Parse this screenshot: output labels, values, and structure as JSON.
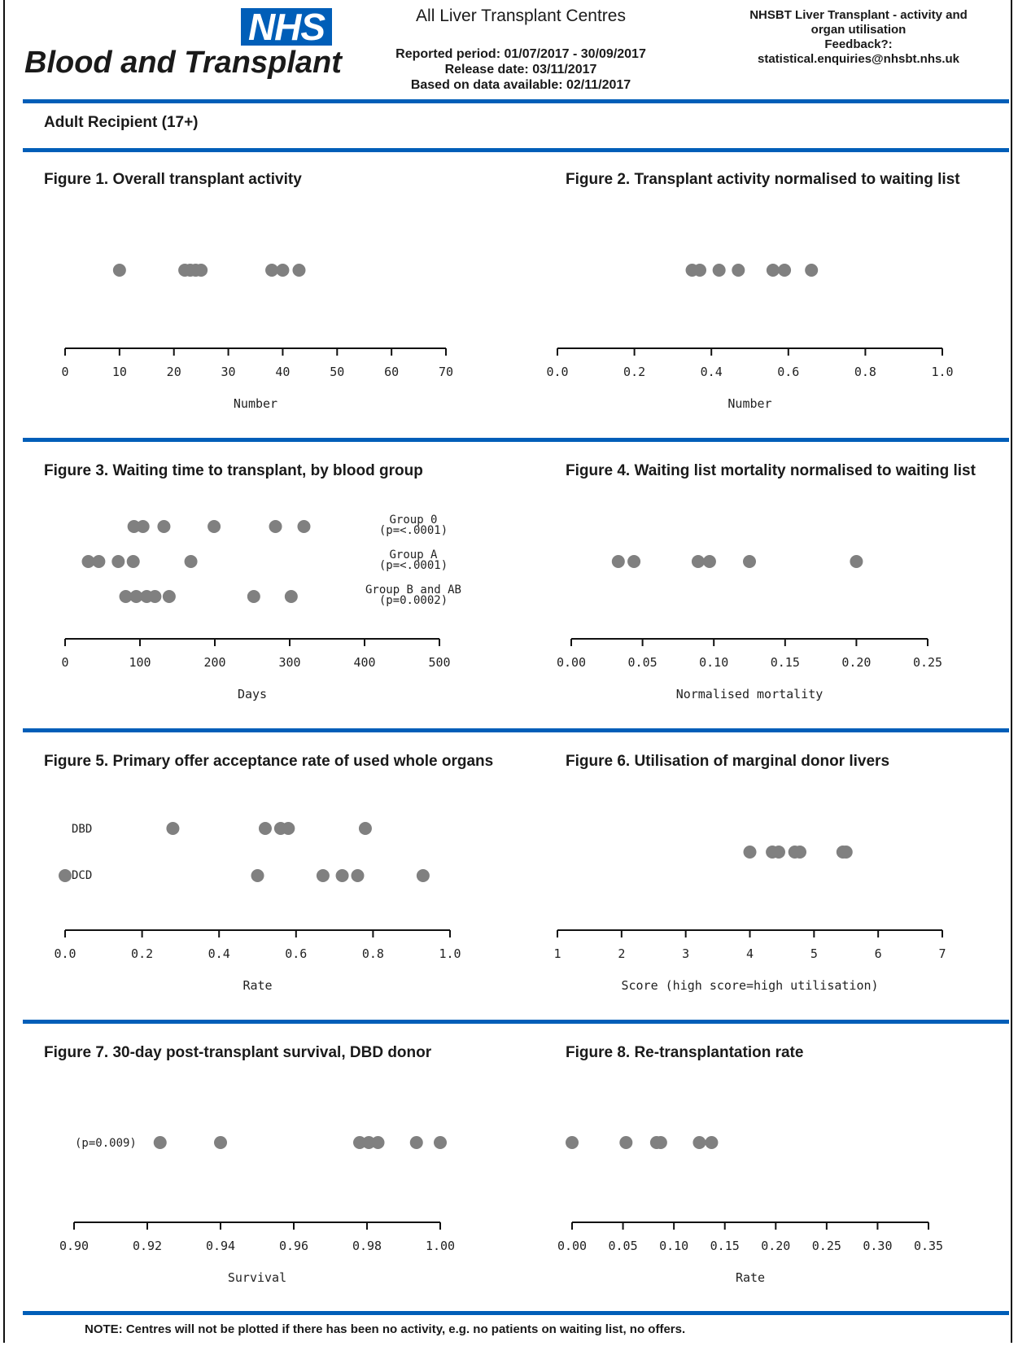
{
  "header": {
    "logo_text": "NHS",
    "org_name": "Blood and Transplant",
    "report_title": "All Liver Transplant Centres",
    "period_line": "Reported period: 01/07/2017  - 30/09/2017",
    "release_line": "Release date: 03/11/2017",
    "data_line": "Based on data available: 02/11/2017",
    "right_line1": "NHSBT Liver Transplant - activity and",
    "right_line2": "organ utilisation",
    "right_line3": "Feedback?:",
    "right_line4": "statistical.enquiries@nhsbt.nhs.uk"
  },
  "section_label": "Adult Recipient (17+)",
  "colors": {
    "rule": "#005eb8",
    "dot": "#808080",
    "axis": "#111111"
  },
  "figures": [
    {
      "title": "Figure 1. Overall transplant activity"
    },
    {
      "title": "Figure 2. Transplant activity normalised to waiting list"
    },
    {
      "title": "Figure 3. Waiting time to transplant, by blood group"
    },
    {
      "title": "Figure 4. Waiting list mortality normalised to waiting list"
    },
    {
      "title": "Figure 5. Primary offer acceptance rate of used whole organs"
    },
    {
      "title": "Figure 6. Utilisation of marginal donor livers"
    },
    {
      "title": "Figure 7. 30-day post-transplant survival, DBD donor"
    },
    {
      "title": "Figure 8. Re-transplantation rate"
    }
  ],
  "note": "NOTE: Centres will not be plotted if there has been no activity, e.g. no patients on waiting list, no offers.",
  "chart_data": [
    {
      "type": "scatter",
      "xlabel": "Number",
      "xlim": [
        0,
        70
      ],
      "ticks": [
        "0",
        "10",
        "20",
        "30",
        "40",
        "50",
        "60",
        "70"
      ],
      "tick_values": [
        0,
        10,
        20,
        30,
        40,
        50,
        60,
        70
      ],
      "series": [
        {
          "label": "",
          "values": [
            10,
            22,
            23,
            24,
            25,
            38,
            40,
            43
          ]
        }
      ]
    },
    {
      "type": "scatter",
      "xlabel": "Number",
      "xlim": [
        0,
        1
      ],
      "ticks": [
        "0.0",
        "0.2",
        "0.4",
        "0.6",
        "0.8",
        "1.0"
      ],
      "tick_values": [
        0,
        0.2,
        0.4,
        0.6,
        0.8,
        1.0
      ],
      "series": [
        {
          "label": "",
          "values": [
            0.35,
            0.37,
            0.42,
            0.47,
            0.56,
            0.59,
            0.66
          ]
        }
      ]
    },
    {
      "type": "scatter",
      "xlabel": "Days",
      "xlim": [
        0,
        500
      ],
      "ticks": [
        "0",
        "100",
        "200",
        "300",
        "400",
        "500"
      ],
      "tick_values": [
        0,
        100,
        200,
        300,
        400,
        500
      ],
      "series": [
        {
          "label": "Group 0",
          "sublabel": "(p=<.0001)",
          "values": [
            92,
            104,
            132,
            199,
            281,
            319
          ]
        },
        {
          "label": "Group A",
          "sublabel": "(p=<.0001)",
          "values": [
            31,
            45,
            71,
            91,
            168
          ]
        },
        {
          "label": "Group B and AB",
          "sublabel": "(p=0.0002)",
          "values": [
            81,
            95,
            109,
            120,
            139,
            252,
            302
          ]
        }
      ]
    },
    {
      "type": "scatter",
      "xlabel": "Normalised mortality",
      "xlim": [
        0,
        0.25
      ],
      "ticks": [
        "0.00",
        "0.05",
        "0.10",
        "0.15",
        "0.20",
        "0.25"
      ],
      "tick_values": [
        0,
        0.05,
        0.1,
        0.15,
        0.2,
        0.25
      ],
      "series": [
        {
          "label": "",
          "values": [
            0.033,
            0.044,
            0.089,
            0.097,
            0.125,
            0.2
          ]
        }
      ]
    },
    {
      "type": "scatter",
      "xlabel": "Rate",
      "xlim": [
        0,
        1
      ],
      "ticks": [
        "0.0",
        "0.2",
        "0.4",
        "0.6",
        "0.8",
        "1.0"
      ],
      "tick_values": [
        0,
        0.2,
        0.4,
        0.6,
        0.8,
        1.0
      ],
      "series": [
        {
          "label": "DBD",
          "values": [
            0.28,
            0.52,
            0.56,
            0.58,
            0.78
          ]
        },
        {
          "label": "DCD",
          "values": [
            0.0,
            0.5,
            0.67,
            0.72,
            0.76,
            0.93
          ]
        }
      ]
    },
    {
      "type": "scatter",
      "xlabel": "Score (high score=high utilisation)",
      "xlim": [
        1,
        7
      ],
      "ticks": [
        "1",
        "2",
        "3",
        "4",
        "5",
        "6",
        "7"
      ],
      "tick_values": [
        1,
        2,
        3,
        4,
        5,
        6,
        7
      ],
      "series": [
        {
          "label": "",
          "values": [
            4.0,
            4.35,
            4.45,
            4.7,
            4.78,
            5.45,
            5.5
          ]
        }
      ]
    },
    {
      "type": "scatter",
      "xlabel": "Survival",
      "xlim": [
        0.9,
        1.0
      ],
      "ticks": [
        "0.90",
        "0.92",
        "0.94",
        "0.96",
        "0.98",
        "1.00"
      ],
      "tick_values": [
        0.9,
        0.92,
        0.94,
        0.96,
        0.98,
        1.0
      ],
      "series": [
        {
          "label": "(p=0.009)",
          "values": [
            0.9235,
            0.94,
            0.978,
            0.9805,
            0.983,
            0.9935,
            1.0
          ]
        }
      ]
    },
    {
      "type": "scatter",
      "xlabel": "Rate",
      "xlim": [
        0,
        0.35
      ],
      "ticks": [
        "0.00",
        "0.05",
        "0.10",
        "0.15",
        "0.20",
        "0.25",
        "0.30",
        "0.35"
      ],
      "tick_values": [
        0,
        0.05,
        0.1,
        0.15,
        0.2,
        0.25,
        0.3,
        0.35
      ],
      "series": [
        {
          "label": "",
          "values": [
            0.0,
            0.053,
            0.083,
            0.087,
            0.125,
            0.137
          ]
        }
      ]
    }
  ]
}
